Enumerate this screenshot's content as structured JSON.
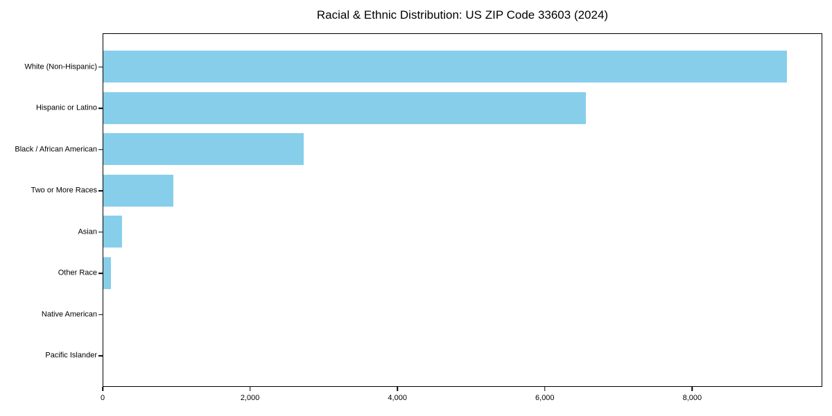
{
  "title": "Racial & Ethnic Distribution: US ZIP Code 33603 (2024)",
  "chart_data": {
    "type": "bar",
    "orientation": "horizontal",
    "title": "Racial & Ethnic Distribution: US ZIP Code 33603 (2024)",
    "categories": [
      "White (Non-Hispanic)",
      "Hispanic or Latino",
      "Black / African American",
      "Two or More Races",
      "Asian",
      "Other Race",
      "Native American",
      "Pacific Islander"
    ],
    "values": [
      9300,
      6570,
      2725,
      950,
      255,
      105,
      0,
      0
    ],
    "xlabel": "",
    "ylabel": "",
    "xlim": [
      0,
      9765
    ],
    "x_ticks": [
      0,
      2000,
      4000,
      6000,
      8000
    ],
    "x_tick_labels": [
      "0",
      "2,000",
      "4,000",
      "6,000",
      "8,000"
    ],
    "bar_color": "#87CEEB",
    "background_color": "#ffffff",
    "spine_color": "#000000",
    "grid": false,
    "legend": null
  }
}
